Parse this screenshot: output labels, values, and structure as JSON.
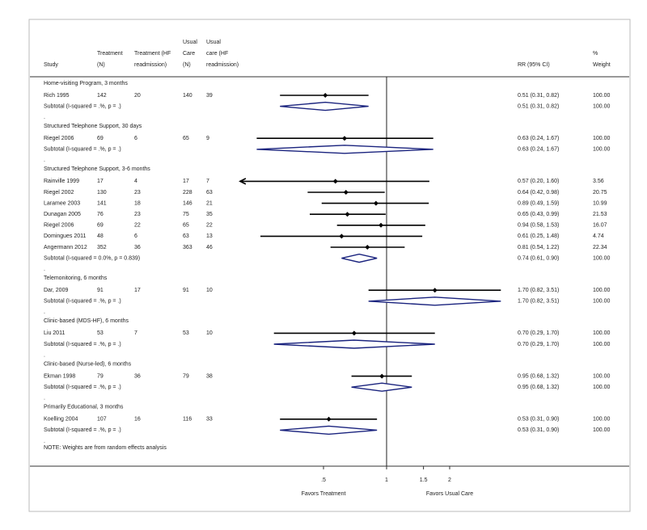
{
  "chart_data": {
    "type": "forest",
    "xlog": true,
    "xlim": [
      0.2,
      3.6
    ],
    "xticks": [
      {
        "value": 0.5,
        "label": ".5"
      },
      1,
      1.5,
      2
    ],
    "reference_line": 1,
    "headers": [
      [
        "Study"
      ],
      [
        "Treatment",
        "(N)"
      ],
      [
        "Treatment (HF",
        "readmission)"
      ],
      [
        "Usual",
        "Care",
        "(N)"
      ],
      [
        "Usual",
        "care (HF",
        "readmission)"
      ],
      [
        "RR (95% CI)"
      ],
      [
        "%",
        "Weight"
      ]
    ],
    "separator": ".",
    "groups": [
      {
        "title": "Home-visiting Program, 3 months",
        "studies": [
          {
            "study": "Rich  1995",
            "treatment_n": 142,
            "treatment_events": 20,
            "usual_n": 140,
            "usual_events": 39,
            "rr": 0.51,
            "ci": [
              0.31,
              0.82
            ],
            "rr_label": "0.51 (0.31, 0.82)",
            "weight": "100.00"
          }
        ],
        "subtotal": {
          "label": "Subtotal  (I-squared = .%, p = .)",
          "rr": 0.51,
          "ci": [
            0.31,
            0.82
          ],
          "rr_label": "0.51 (0.31, 0.82)",
          "weight": "100.00"
        }
      },
      {
        "title": "Structured Telephone Support, 30 days",
        "studies": [
          {
            "study": "Riegel 2006",
            "treatment_n": 69,
            "treatment_events": 6,
            "usual_n": 65,
            "usual_events": 9,
            "rr": 0.63,
            "ci": [
              0.24,
              1.67
            ],
            "rr_label": "0.63 (0.24, 1.67)",
            "weight": "100.00"
          }
        ],
        "subtotal": {
          "label": "Subtotal  (I-squared = .%, p = .)",
          "rr": 0.63,
          "ci": [
            0.24,
            1.67
          ],
          "rr_label": "0.63 (0.24, 1.67)",
          "weight": "100.00"
        }
      },
      {
        "title": "Structured Telephone Support, 3-6 months",
        "studies": [
          {
            "study": "Rainville 1999",
            "treatment_n": 17,
            "treatment_events": 4,
            "usual_n": 17,
            "usual_events": 7,
            "rr": 0.57,
            "ci": [
              0.2,
              1.6
            ],
            "rr_label": "0.57 (0.20, 1.60)",
            "weight": "3.56"
          },
          {
            "study": "Riegel 2002",
            "treatment_n": 130,
            "treatment_events": 23,
            "usual_n": 228,
            "usual_events": 63,
            "rr": 0.64,
            "ci": [
              0.42,
              0.98
            ],
            "rr_label": "0.64 (0.42, 0.98)",
            "weight": "20.75"
          },
          {
            "study": "Laramee 2003",
            "treatment_n": 141,
            "treatment_events": 18,
            "usual_n": 146,
            "usual_events": 21,
            "rr": 0.89,
            "ci": [
              0.49,
              1.59
            ],
            "rr_label": "0.89 (0.49, 1.59)",
            "weight": "10.99"
          },
          {
            "study": "Dunagan 2005",
            "treatment_n": 76,
            "treatment_events": 23,
            "usual_n": 75,
            "usual_events": 35,
            "rr": 0.65,
            "ci": [
              0.43,
              0.99
            ],
            "rr_label": "0.65 (0.43, 0.99)",
            "weight": "21.53"
          },
          {
            "study": "Riegel 2006",
            "treatment_n": 69,
            "treatment_events": 22,
            "usual_n": 65,
            "usual_events": 22,
            "rr": 0.94,
            "ci": [
              0.58,
              1.53
            ],
            "rr_label": "0.94 (0.58, 1.53)",
            "weight": "16.07"
          },
          {
            "study": "Domingues 2011",
            "treatment_n": 48,
            "treatment_events": 6,
            "usual_n": 63,
            "usual_events": 13,
            "rr": 0.61,
            "ci": [
              0.25,
              1.48
            ],
            "rr_label": "0.61 (0.25, 1.48)",
            "weight": "4.74"
          },
          {
            "study": "Angermann 2012",
            "treatment_n": 352,
            "treatment_events": 36,
            "usual_n": 363,
            "usual_events": 46,
            "rr": 0.81,
            "ci": [
              0.54,
              1.22
            ],
            "rr_label": "0.81 (0.54, 1.22)",
            "weight": "22.34"
          }
        ],
        "subtotal": {
          "label": "Subtotal  (I-squared = 0.0%, p = 0.839)",
          "rr": 0.74,
          "ci": [
            0.61,
            0.9
          ],
          "rr_label": "0.74 (0.61, 0.90)",
          "weight": "100.00"
        }
      },
      {
        "title": "Telemonitoring, 6 months",
        "studies": [
          {
            "study": "Dar, 2009",
            "treatment_n": 91,
            "treatment_events": 17,
            "usual_n": 91,
            "usual_events": 10,
            "rr": 1.7,
            "ci": [
              0.82,
              3.51
            ],
            "rr_label": "1.70 (0.82, 3.51)",
            "weight": "100.00"
          }
        ],
        "subtotal": {
          "label": "Subtotal  (I-squared = .%, p = .)",
          "rr": 1.7,
          "ci": [
            0.82,
            3.51
          ],
          "rr_label": "1.70 (0.82, 3.51)",
          "weight": "100.00"
        }
      },
      {
        "title": "Clinic-based (MDS-HF), 6 months",
        "studies": [
          {
            "study": "Liu 2011",
            "treatment_n": 53,
            "treatment_events": 7,
            "usual_n": 53,
            "usual_events": 10,
            "rr": 0.7,
            "ci": [
              0.29,
              1.7
            ],
            "rr_label": "0.70 (0.29, 1.70)",
            "weight": "100.00"
          }
        ],
        "subtotal": {
          "label": "Subtotal  (I-squared = .%, p = .)",
          "rr": 0.7,
          "ci": [
            0.29,
            1.7
          ],
          "rr_label": "0.70 (0.29, 1.70)",
          "weight": "100.00"
        }
      },
      {
        "title": "Clinic-based (Nurse-led), 6 months",
        "studies": [
          {
            "study": "Ekman 1998",
            "treatment_n": 79,
            "treatment_events": 36,
            "usual_n": 79,
            "usual_events": 38,
            "rr": 0.95,
            "ci": [
              0.68,
              1.32
            ],
            "rr_label": "0.95 (0.68, 1.32)",
            "weight": "100.00"
          }
        ],
        "subtotal": {
          "label": "Subtotal  (I-squared = .%, p = .)",
          "rr": 0.95,
          "ci": [
            0.68,
            1.32
          ],
          "rr_label": "0.95 (0.68, 1.32)",
          "weight": "100.00"
        }
      },
      {
        "title": "Primarily Educational, 3 months",
        "studies": [
          {
            "study": "Koelling 2004",
            "treatment_n": 107,
            "treatment_events": 16,
            "usual_n": 116,
            "usual_events": 33,
            "rr": 0.53,
            "ci": [
              0.31,
              0.9
            ],
            "rr_label": "0.53 (0.31, 0.90)",
            "weight": "100.00"
          }
        ],
        "subtotal": {
          "label": "Subtotal  (I-squared = .%, p = .)",
          "rr": 0.53,
          "ci": [
            0.31,
            0.9
          ],
          "rr_label": "0.53 (0.31, 0.90)",
          "weight": "100.00"
        }
      }
    ],
    "note": "NOTE: Weights are from random effects analysis",
    "x_label_left": "Favors Treatment",
    "x_label_right": "Favors Usual Care"
  }
}
